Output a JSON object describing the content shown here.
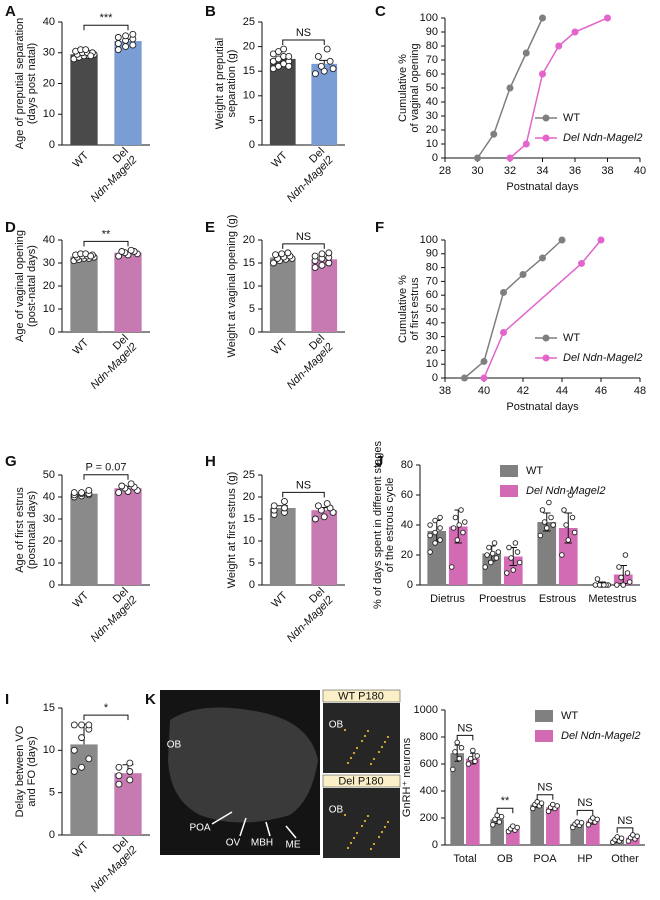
{
  "chart_data": [
    {
      "label": "A",
      "type": "bar",
      "categories": [
        [
          "WT"
        ],
        [
          "Del",
          "Ndn-Magel2"
        ]
      ],
      "values": [
        29.5,
        33.8
      ],
      "errors": [
        0.4,
        0.6
      ],
      "colors": [
        "#4a4a4a",
        "#7b9dd6"
      ],
      "points": [
        [
          28,
          28.5,
          29,
          29,
          29.5,
          29.5,
          30,
          30,
          30,
          30.5,
          31,
          31,
          29
        ],
        [
          31,
          32,
          32.5,
          33,
          34,
          34.5,
          35,
          35.5,
          36
        ]
      ],
      "ylim": [
        0,
        40
      ],
      "yticks": [
        0,
        10,
        20,
        30,
        40
      ],
      "ylabel": [
        "Age of preputial separation",
        "(days post natal)"
      ],
      "significance": "***"
    },
    {
      "label": "B",
      "type": "bar",
      "categories": [
        [
          "WT"
        ],
        [
          "Del",
          "Ndn-Magel2"
        ]
      ],
      "values": [
        17.5,
        16.5
      ],
      "errors": [
        0.4,
        0.7
      ],
      "colors": [
        "#4a4a4a",
        "#7b9dd6"
      ],
      "points": [
        [
          15.5,
          16,
          16.5,
          17,
          17,
          17.5,
          18,
          18,
          18.5,
          19,
          19.5,
          16
        ],
        [
          14.5,
          15,
          15.5,
          16,
          17,
          18,
          19.5
        ]
      ],
      "ylim": [
        0,
        25
      ],
      "yticks": [
        0,
        5,
        10,
        15,
        20,
        25
      ],
      "ylabel": [
        "Weight at preputial",
        "separation (g)"
      ],
      "significance": "NS"
    },
    {
      "label": "C",
      "type": "line",
      "legend": "lower right",
      "series": [
        {
          "name": "WT",
          "color": "#7f7f7f",
          "x": [
            30,
            31,
            32,
            33,
            34
          ],
          "values": [
            0,
            17,
            50,
            75,
            100
          ]
        },
        {
          "name": "Del Ndn-Magel2",
          "color": "#e264cc",
          "x": [
            32,
            33,
            34,
            35,
            36,
            38
          ],
          "values": [
            0,
            10,
            60,
            80,
            90,
            100
          ]
        }
      ],
      "xlim": [
        28,
        40
      ],
      "xticks": [
        28,
        30,
        32,
        34,
        36,
        38,
        40
      ],
      "ylim": [
        0,
        100
      ],
      "yticks": [
        0,
        10,
        20,
        30,
        40,
        50,
        60,
        70,
        80,
        90,
        100
      ],
      "xlabel": "Postnatal days",
      "ylabel": [
        "Cumulative %",
        "of vaginal opening"
      ]
    },
    {
      "label": "D",
      "type": "bar",
      "categories": [
        [
          "WT"
        ],
        [
          "Del",
          "Ndn-Magel2"
        ]
      ],
      "values": [
        32.8,
        34.5
      ],
      "errors": [
        0.3,
        0.4
      ],
      "colors": [
        "#8a8a8a",
        "#c779b1"
      ],
      "points": [
        [
          31,
          31.5,
          32,
          32,
          32.5,
          32.5,
          33,
          33,
          33.5,
          33.5,
          34,
          34,
          33
        ],
        [
          33,
          33.5,
          34,
          34.5,
          35,
          35,
          35.5
        ]
      ],
      "ylim": [
        0,
        40
      ],
      "yticks": [
        0,
        10,
        20,
        30,
        40
      ],
      "ylabel": [
        "Age of vaginal opening",
        "(post-natal days)"
      ],
      "significance": "**"
    },
    {
      "label": "E",
      "type": "bar",
      "categories": [
        [
          "WT"
        ],
        [
          "Del",
          "Ndn-Magel2"
        ]
      ],
      "values": [
        16.2,
        15.8
      ],
      "errors": [
        0.2,
        0.4
      ],
      "colors": [
        "#8a8a8a",
        "#c779b1"
      ],
      "points": [
        [
          15,
          15.5,
          15.8,
          16,
          16,
          16.3,
          16.5,
          16.8,
          17,
          17.2
        ],
        [
          14,
          14.5,
          15,
          15.5,
          16,
          16.2,
          16.5,
          17,
          17.2
        ]
      ],
      "ylim": [
        0,
        20
      ],
      "yticks": [
        0,
        5,
        10,
        15,
        20
      ],
      "ylabel": [
        "Weight at vaginal opening (g)"
      ],
      "significance": "NS"
    },
    {
      "label": "F",
      "type": "line",
      "legend": "lower right",
      "series": [
        {
          "name": "WT",
          "color": "#7f7f7f",
          "x": [
            39,
            40,
            41,
            42,
            43,
            44
          ],
          "values": [
            0,
            12,
            62,
            75,
            87,
            100
          ]
        },
        {
          "name": "Del Ndn-Magel2",
          "color": "#e264cc",
          "x": [
            40,
            41,
            45,
            46
          ],
          "values": [
            0,
            33,
            83,
            100
          ]
        }
      ],
      "xlim": [
        38,
        48
      ],
      "xticks": [
        38,
        40,
        42,
        44,
        46,
        48
      ],
      "ylim": [
        0,
        100
      ],
      "yticks": [
        0,
        10,
        20,
        30,
        40,
        50,
        60,
        70,
        80,
        90,
        100
      ],
      "xlabel": "Postnatal days",
      "ylabel": [
        "Cumulative %",
        "of first estrus"
      ]
    },
    {
      "label": "G",
      "type": "bar",
      "categories": [
        [
          "WT"
        ],
        [
          "Del",
          "Ndn-Magel2"
        ]
      ],
      "values": [
        41.5,
        44
      ],
      "errors": [
        0.4,
        0.7
      ],
      "colors": [
        "#8a8a8a",
        "#c779b1"
      ],
      "points": [
        [
          40,
          40.5,
          41,
          41,
          41.5,
          41.5,
          42,
          42,
          43
        ],
        [
          42,
          42.5,
          43,
          44,
          44.5,
          45,
          46
        ]
      ],
      "ylim": [
        0,
        50
      ],
      "yticks": [
        0,
        10,
        20,
        30,
        40,
        50
      ],
      "ylabel": [
        "Age of first estrus",
        "(postnatal days)"
      ],
      "significance": "P = 0.07"
    },
    {
      "label": "H",
      "type": "bar",
      "categories": [
        [
          "WT"
        ],
        [
          "Del",
          "Ndn-Magel2"
        ]
      ],
      "values": [
        17.5,
        17
      ],
      "errors": [
        0.5,
        0.6
      ],
      "colors": [
        "#8a8a8a",
        "#c779b1"
      ],
      "points": [
        [
          16,
          16.5,
          17,
          17.5,
          18,
          19
        ],
        [
          15,
          15.5,
          16.5,
          17,
          17.5,
          18,
          18.5
        ]
      ],
      "ylim": [
        0,
        25
      ],
      "yticks": [
        0,
        5,
        10,
        15,
        20,
        25
      ],
      "ylabel": [
        "Weight at first estrus (g)"
      ],
      "significance": "NS"
    },
    {
      "label": "J",
      "type": "grouped_bar",
      "legend": "upper right",
      "categories": [
        "Dietrus",
        "Proestrus",
        "Estrous",
        "Metestrus"
      ],
      "series": [
        {
          "name": "WT",
          "color": "#808080",
          "values": [
            36,
            21,
            42,
            1
          ],
          "errors": [
            7,
            5,
            6,
            1
          ],
          "points": [
            [
              22,
              28,
              30,
              33,
              35,
              38,
              40,
              43,
              45
            ],
            [
              12,
              15,
              18,
              20,
              21,
              22,
              25,
              28
            ],
            [
              33,
              38,
              40,
              42,
              45,
              50,
              55
            ],
            [
              0,
              0,
              0,
              0,
              0,
              4,
              0
            ]
          ]
        },
        {
          "name": "Del Ndn-Magel2",
          "color": "#d36bb4",
          "values": [
            39,
            19,
            38,
            7
          ],
          "errors": [
            11,
            6,
            10,
            6
          ],
          "points": [
            [
              12,
              30,
              35,
              38,
              40,
              42,
              45,
              50
            ],
            [
              8,
              10,
              15,
              18,
              22,
              25,
              28
            ],
            [
              20,
              30,
              35,
              40,
              45,
              50,
              60
            ],
            [
              0,
              0,
              2,
              5,
              8,
              12,
              20
            ]
          ]
        }
      ],
      "ylim": [
        0,
        80
      ],
      "yticks": [
        0,
        20,
        40,
        60,
        80
      ],
      "ylabel": [
        "% of days spent in different stages",
        "of the estrous cycle"
      ]
    },
    {
      "label": "I",
      "type": "bar",
      "categories": [
        [
          "WT"
        ],
        [
          "Del",
          "Ndn-Magel2"
        ]
      ],
      "values": [
        10.7,
        7.3
      ],
      "errors": [
        2.4,
        1
      ],
      "colors": [
        "#8a8a8a",
        "#c779b1"
      ],
      "points": [
        [
          7.5,
          8,
          9,
          10,
          11.5,
          12.5,
          13,
          13,
          13
        ],
        [
          6,
          6.5,
          7,
          7.5,
          8,
          8.5
        ]
      ],
      "ylim": [
        0,
        15
      ],
      "yticks": [
        0,
        5,
        10,
        15
      ],
      "ylabel": [
        "Delay between VO",
        "and FO (days)"
      ],
      "significance": "*"
    },
    {
      "label": "K",
      "type": "grouped_bar",
      "legend": "upper right",
      "categories": [
        "Total",
        "OB",
        "POA",
        "HP",
        "Other"
      ],
      "series": [
        {
          "name": "WT",
          "color": "#808080",
          "values": [
            680,
            190,
            300,
            155,
            40
          ],
          "errors": [
            60,
            30,
            20,
            15,
            20
          ],
          "points": [
            [
              560,
              640,
              690,
              720,
              760
            ],
            [
              150,
              170,
              190,
              210,
              220
            ],
            [
              270,
              290,
              300,
              310,
              320
            ],
            [
              130,
              145,
              155,
              165,
              170
            ],
            [
              20,
              30,
              40,
              50,
              60
            ]
          ]
        },
        {
          "name": "Del Ndn-Magel2",
          "color": "#d36bb4",
          "values": [
            640,
            120,
            280,
            180,
            55
          ],
          "errors": [
            40,
            15,
            20,
            25,
            15
          ],
          "points": [
            [
              600,
              620,
              640,
              660,
              700
            ],
            [
              100,
              110,
              120,
              130,
              140
            ],
            [
              250,
              270,
              280,
              290,
              300
            ],
            [
              150,
              170,
              180,
              190,
              200
            ],
            [
              30,
              45,
              55,
              65,
              75
            ]
          ]
        }
      ],
      "ylim": [
        0,
        1000
      ],
      "yticks": [
        0,
        200,
        400,
        600,
        800,
        1000
      ],
      "ylabel": [
        "GnRH⁺ neurons"
      ],
      "significance": [
        "NS",
        "**",
        "NS",
        "NS",
        "NS"
      ],
      "image_labels": [
        "OB",
        "POA",
        "OV",
        "MBH",
        "ME"
      ],
      "insets": [
        {
          "title": "WT P180",
          "label": "OB"
        },
        {
          "title": "Del P180",
          "label": "OB"
        }
      ]
    }
  ]
}
